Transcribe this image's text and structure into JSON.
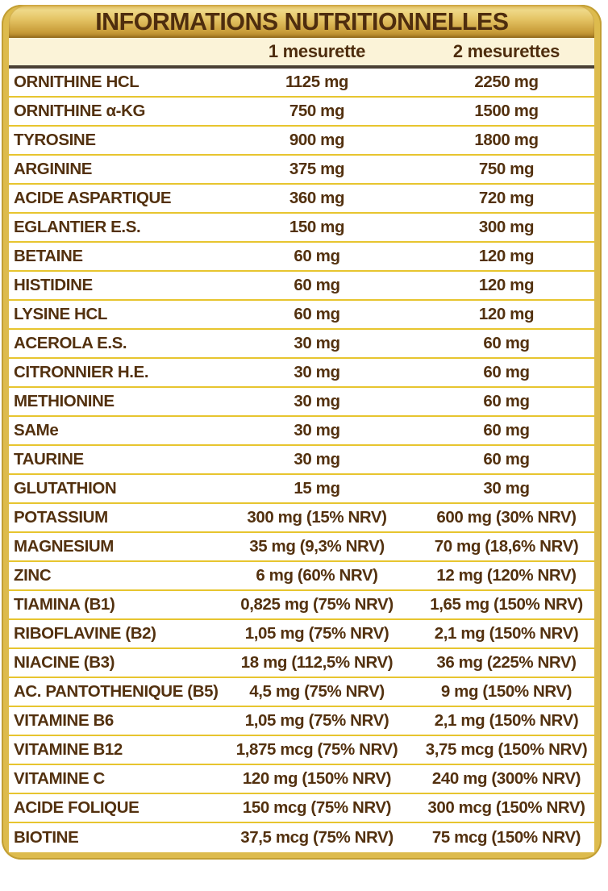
{
  "title": "INFORMATIONS NUTRITIONNELLES",
  "columns": [
    "1 mesurette",
    "2 mesurettes"
  ],
  "colors": {
    "title_text": "#4E2D0E",
    "text": "#53310F",
    "cream": "#FBF3D8",
    "separator": "#E7C52F",
    "dark_rule": "#4A4035",
    "border_gold": "#DDBB4D",
    "border_edge": "#C29E33"
  },
  "rows": [
    {
      "name": "ORNITHINE HCL",
      "v1": "1125 mg",
      "v2": "2250 mg"
    },
    {
      "name": "ORNITHINE α-KG",
      "v1": "750 mg",
      "v2": "1500 mg"
    },
    {
      "name": "TYROSINE",
      "v1": "900 mg",
      "v2": "1800 mg"
    },
    {
      "name": "ARGININE",
      "v1": "375 mg",
      "v2": "750 mg"
    },
    {
      "name": "ACIDE ASPARTIQUE",
      "v1": "360 mg",
      "v2": "720 mg"
    },
    {
      "name": "EGLANTIER E.S.",
      "v1": "150 mg",
      "v2": "300 mg"
    },
    {
      "name": "BETAINE",
      "v1": "60 mg",
      "v2": "120 mg"
    },
    {
      "name": "HISTIDINE",
      "v1": "60 mg",
      "v2": "120 mg"
    },
    {
      "name": "LYSINE HCL",
      "v1": "60 mg",
      "v2": "120 mg"
    },
    {
      "name": "ACEROLA E.S.",
      "v1": "30 mg",
      "v2": "60 mg"
    },
    {
      "name": "CITRONNIER H.E.",
      "v1": "30 mg",
      "v2": "60 mg"
    },
    {
      "name": "METHIONINE",
      "v1": "30 mg",
      "v2": "60 mg"
    },
    {
      "name": "SAMe",
      "v1": "30 mg",
      "v2": "60 mg"
    },
    {
      "name": "TAURINE",
      "v1": "30 mg",
      "v2": "60 mg"
    },
    {
      "name": "GLUTATHION",
      "v1": "15 mg",
      "v2": "30 mg"
    },
    {
      "name": "POTASSIUM",
      "v1": "300 mg (15% NRV)",
      "v2": "600 mg (30% NRV)"
    },
    {
      "name": "MAGNESIUM",
      "v1": "35 mg (9,3% NRV)",
      "v2": "70 mg (18,6% NRV)"
    },
    {
      "name": "ZINC",
      "v1": "6 mg (60% NRV)",
      "v2": "12 mg (120% NRV)"
    },
    {
      "name": "TIAMINA (B1)",
      "v1": "0,825 mg (75% NRV)",
      "v2": "1,65 mg (150% NRV)"
    },
    {
      "name": "RIBOFLAVINE (B2)",
      "v1": "1,05 mg (75% NRV)",
      "v2": "2,1 mg (150% NRV)"
    },
    {
      "name": "NIACINE (B3)",
      "v1": "18 mg (112,5% NRV)",
      "v2": "36 mg (225% NRV)"
    },
    {
      "name": "AC. PANTOTHENIQUE (B5)",
      "v1": "4,5 mg (75% NRV)",
      "v2": "9 mg (150% NRV)"
    },
    {
      "name": "VITAMINE B6",
      "v1": "1,05 mg (75% NRV)",
      "v2": "2,1 mg (150% NRV)"
    },
    {
      "name": "VITAMINE B12",
      "v1": "1,875 mcg (75% NRV)",
      "v2": "3,75 mcg (150% NRV)"
    },
    {
      "name": "VITAMINE C",
      "v1": "120 mg (150% NRV)",
      "v2": "240 mg (300% NRV)"
    },
    {
      "name": "ACIDE FOLIQUE",
      "v1": "150 mcg (75% NRV)",
      "v2": "300 mcg (150% NRV)"
    },
    {
      "name": "BIOTINE",
      "v1": "37,5 mcg (75% NRV)",
      "v2": "75 mcg (150% NRV)"
    }
  ]
}
